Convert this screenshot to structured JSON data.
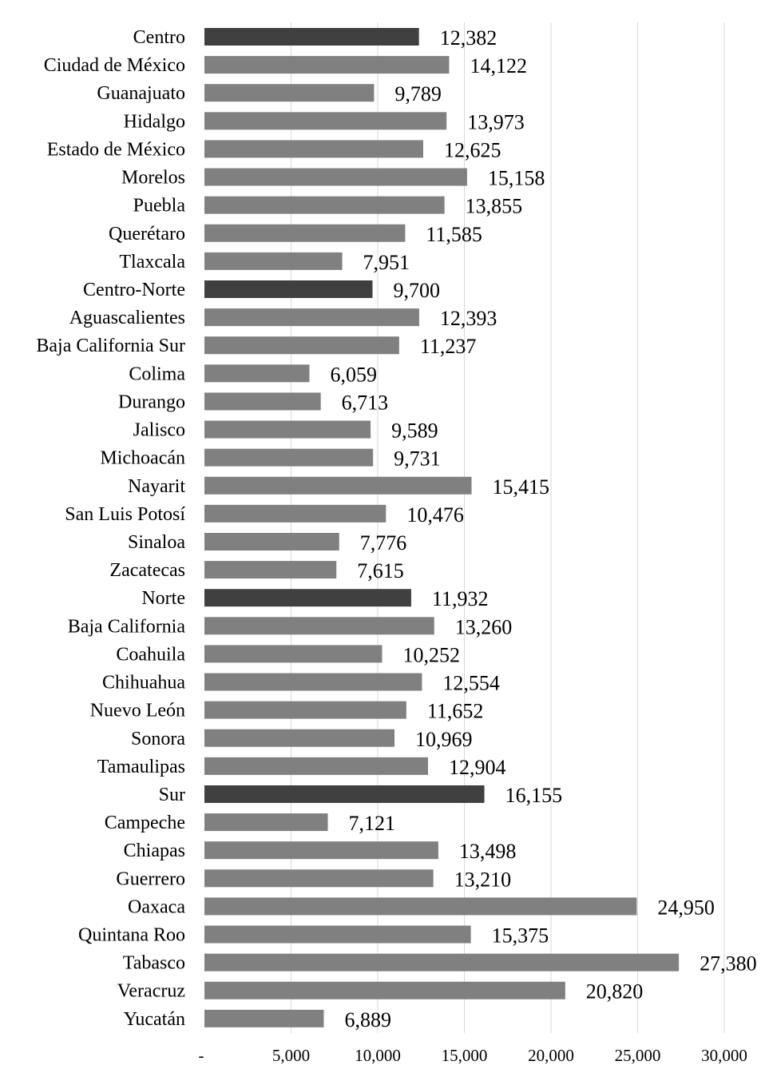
{
  "chart_data": {
    "type": "bar",
    "orientation": "horizontal",
    "title": "",
    "xlabel": "",
    "ylabel": "",
    "xlim": [
      0,
      30000
    ],
    "x_ticks": [
      0,
      5000,
      10000,
      15000,
      20000,
      25000,
      30000
    ],
    "x_tick_labels": [
      "-",
      "5,000",
      "10,000",
      "15,000",
      "20,000",
      "25,000",
      "30,000"
    ],
    "grid": "vertical",
    "legend": "none",
    "colors": {
      "region": "#404040",
      "state": "#808080",
      "grid": "#d9d9d9"
    },
    "categories": [
      "Centro",
      "Ciudad de México",
      "Guanajuato",
      "Hidalgo",
      "Estado de México",
      "Morelos",
      "Puebla",
      "Querétaro",
      "Tlaxcala",
      "Centro-Norte",
      "Aguascalientes",
      "Baja California Sur",
      "Colima",
      "Durango",
      "Jalisco",
      "Michoacán",
      "Nayarit",
      "San Luis Potosí",
      "Sinaloa",
      "Zacatecas",
      "Norte",
      "Baja California",
      "Coahuila",
      "Chihuahua",
      "Nuevo León",
      "Sonora",
      "Tamaulipas",
      "Sur",
      "Campeche",
      "Chiapas",
      "Guerrero",
      "Oaxaca",
      "Quintana Roo",
      "Tabasco",
      "Veracruz",
      "Yucatán"
    ],
    "values": [
      12382,
      14122,
      9789,
      13973,
      12625,
      15158,
      13855,
      11585,
      7951,
      9700,
      12393,
      11237,
      6059,
      6713,
      9589,
      9731,
      15415,
      10476,
      7776,
      7615,
      11932,
      13260,
      10252,
      12554,
      11652,
      10969,
      12904,
      16155,
      7121,
      13498,
      13210,
      24950,
      15375,
      27380,
      20820,
      6889
    ],
    "value_labels": [
      "12,382",
      "14,122",
      "9,789",
      "13,973",
      "12,625",
      "15,158",
      "13,855",
      "11,585",
      "7,951",
      "9,700",
      "12,393",
      "11,237",
      "6,059",
      "6,713",
      "9,589",
      "9,731",
      "15,415",
      "10,476",
      "7,776",
      "7,615",
      "11,932",
      "13,260",
      "10,252",
      "12,554",
      "11,652",
      "10,969",
      "12,904",
      "16,155",
      "7,121",
      "13,498",
      "13,210",
      "24,950",
      "15,375",
      "27,380",
      "20,820",
      "6,889"
    ],
    "highlighted": [
      "Centro",
      "Centro-Norte",
      "Norte",
      "Sur"
    ]
  }
}
